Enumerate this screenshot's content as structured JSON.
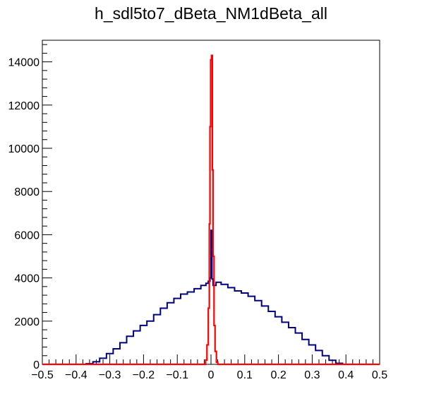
{
  "chart_data": {
    "type": "histogram",
    "title": "h_sdl5to7_dBeta_NM1dBeta_all",
    "xlabel": "",
    "ylabel": "",
    "xlim": [
      -0.5,
      0.5
    ],
    "ylim": [
      0,
      15000
    ],
    "grid": false,
    "x_ticks": [
      -0.5,
      -0.4,
      -0.3,
      -0.2,
      -0.1,
      0,
      0.1,
      0.2,
      0.3,
      0.4,
      0.5
    ],
    "x_tick_labels": [
      "−0.5",
      "−0.4",
      "−0.3",
      "−0.2",
      "−0.1",
      "0",
      "0.1",
      "0.2",
      "0.3",
      "0.4",
      "0.5"
    ],
    "y_ticks": [
      0,
      2000,
      4000,
      6000,
      8000,
      10000,
      12000,
      14000
    ],
    "y_tick_labels": [
      "0",
      "2000",
      "4000",
      "6000",
      "8000",
      "10000",
      "12000",
      "14000"
    ],
    "series": [
      {
        "color": "#000080",
        "points": [
          [
            -0.5,
            0
          ],
          [
            -0.4,
            0
          ],
          [
            -0.37,
            30
          ],
          [
            -0.35,
            120
          ],
          [
            -0.33,
            280
          ],
          [
            -0.31,
            500
          ],
          [
            -0.29,
            720
          ],
          [
            -0.27,
            1000
          ],
          [
            -0.25,
            1300
          ],
          [
            -0.23,
            1550
          ],
          [
            -0.21,
            1800
          ],
          [
            -0.19,
            2000
          ],
          [
            -0.17,
            2300
          ],
          [
            -0.15,
            2600
          ],
          [
            -0.13,
            2850
          ],
          [
            -0.11,
            3050
          ],
          [
            -0.09,
            3250
          ],
          [
            -0.07,
            3350
          ],
          [
            -0.05,
            3500
          ],
          [
            -0.03,
            3650
          ],
          [
            -0.015,
            3750
          ],
          [
            -0.008,
            3850
          ],
          [
            -0.003,
            4000
          ],
          [
            0,
            6200
          ],
          [
            0.003,
            3950
          ],
          [
            0.006,
            3650
          ],
          [
            0.015,
            3800
          ],
          [
            0.03,
            3700
          ],
          [
            0.05,
            3550
          ],
          [
            0.07,
            3400
          ],
          [
            0.09,
            3300
          ],
          [
            0.11,
            3150
          ],
          [
            0.13,
            2950
          ],
          [
            0.15,
            2700
          ],
          [
            0.17,
            2450
          ],
          [
            0.19,
            2200
          ],
          [
            0.21,
            1950
          ],
          [
            0.23,
            1700
          ],
          [
            0.25,
            1450
          ],
          [
            0.27,
            1150
          ],
          [
            0.29,
            900
          ],
          [
            0.31,
            640
          ],
          [
            0.33,
            400
          ],
          [
            0.35,
            190
          ],
          [
            0.37,
            50
          ],
          [
            0.39,
            0
          ],
          [
            0.5,
            0
          ]
        ]
      },
      {
        "color": "#ff0000",
        "points": [
          [
            -0.5,
            0
          ],
          [
            -0.02,
            0
          ],
          [
            -0.016,
            200
          ],
          [
            -0.012,
            900
          ],
          [
            -0.008,
            2600
          ],
          [
            -0.005,
            6500
          ],
          [
            -0.003,
            11000
          ],
          [
            -0.001,
            14100
          ],
          [
            0.0015,
            14300
          ],
          [
            0.004,
            9000
          ],
          [
            0.006,
            5000
          ],
          [
            0.009,
            1800
          ],
          [
            0.012,
            600
          ],
          [
            0.016,
            100
          ],
          [
            0.02,
            0
          ],
          [
            0.5,
            0
          ]
        ]
      }
    ]
  }
}
